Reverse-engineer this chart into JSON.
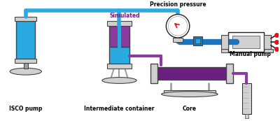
{
  "background_color": "#ffffff",
  "colors": {
    "blue_light": "#29ABE2",
    "blue_dark": "#1B75BC",
    "purple": "#8B3A9E",
    "purple_dark": "#6A2080",
    "gray_light": "#D0D0D0",
    "gray_mid": "#A0A0A0",
    "white": "#FFFFFF",
    "black": "#000000",
    "red": "#EE1111",
    "outline": "#444444",
    "outline2": "#222222"
  },
  "labels": {
    "isco_pump": "ISCO pump",
    "intermediate_container": "Intermediate container",
    "core": "Core",
    "precision_pressure": "Precision pressure",
    "manual_pump": "Manual pump",
    "simulated": "Simulated"
  }
}
